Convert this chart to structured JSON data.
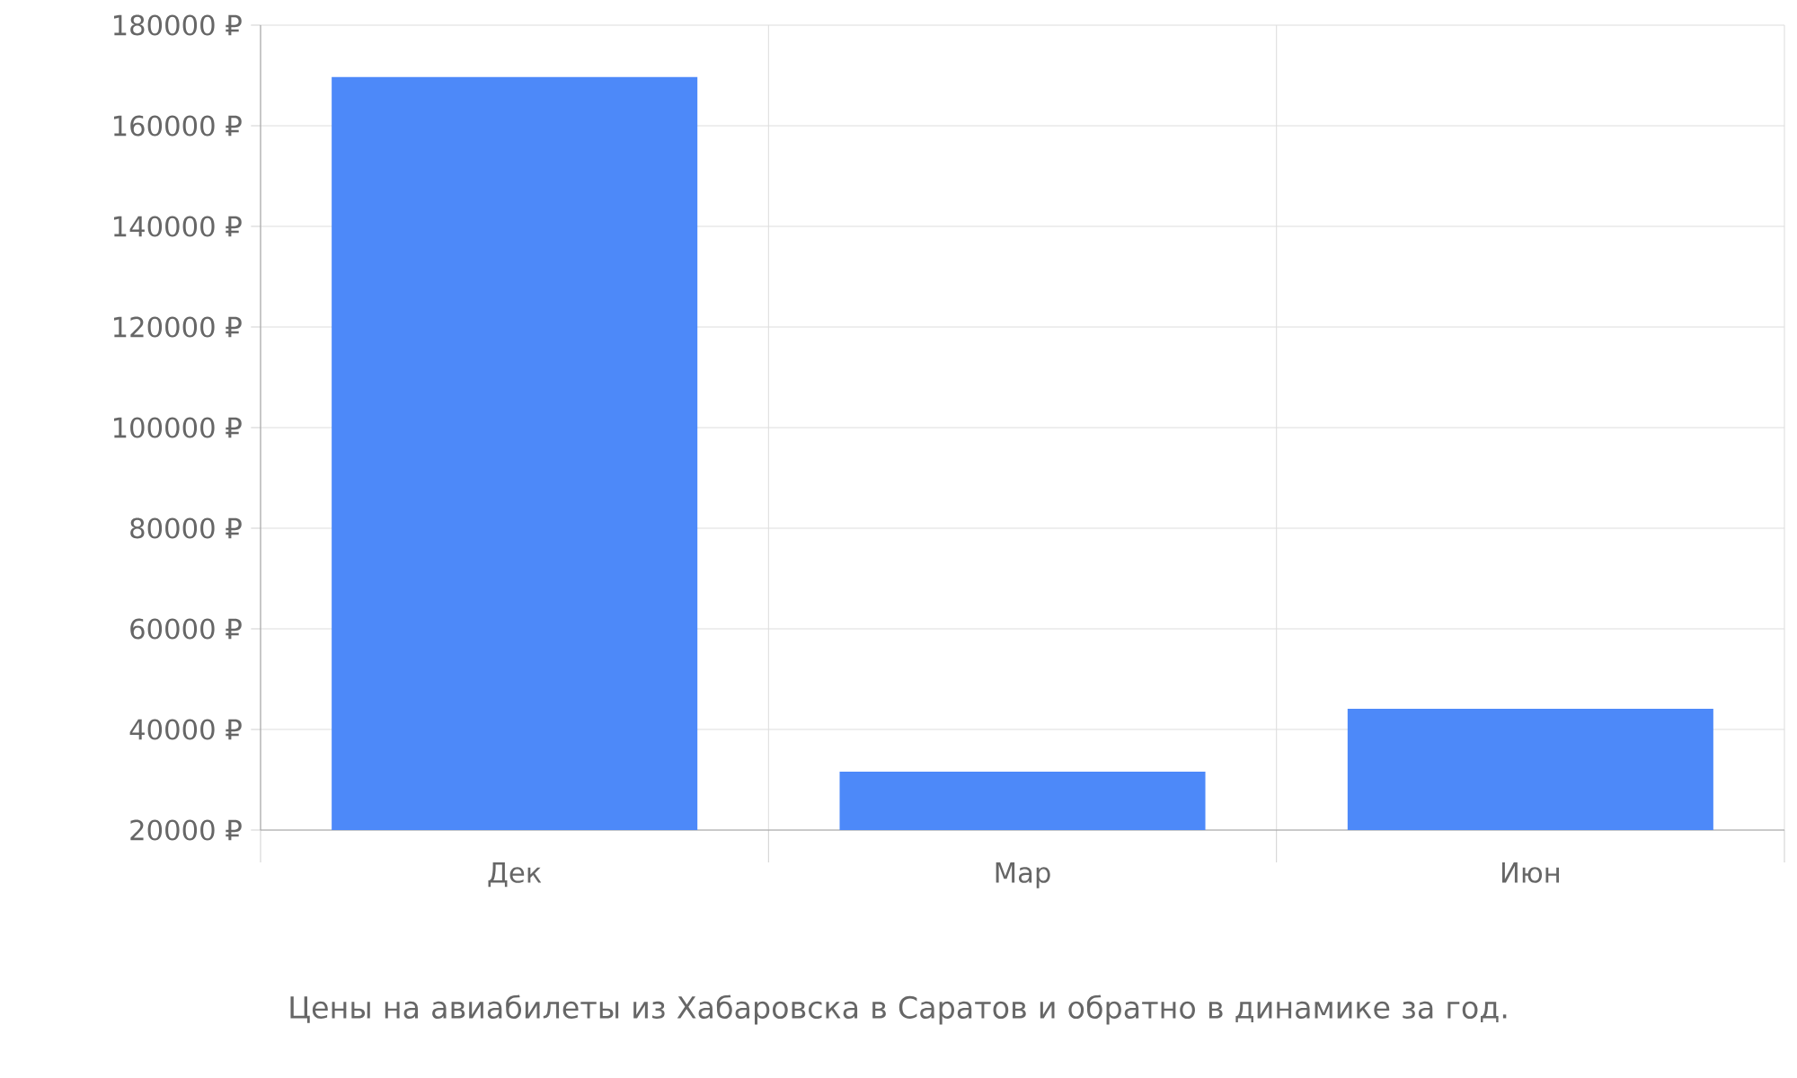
{
  "chart_data": {
    "type": "bar",
    "title": "Цены на авиабилеты из Хабаровска в Саратов и обратно в динамике за год.",
    "categories": [
      "Дек",
      "Мар",
      "Июн"
    ],
    "values": [
      169700,
      31600,
      44100
    ],
    "color": "#4d89f9",
    "ylim": [
      20000,
      180000
    ],
    "yticks": [
      {
        "value": 20000,
        "label": "20000 ₽"
      },
      {
        "value": 40000,
        "label": "40000 ₽"
      },
      {
        "value": 60000,
        "label": "60000 ₽"
      },
      {
        "value": 80000,
        "label": "80000 ₽"
      },
      {
        "value": 100000,
        "label": "100000 ₽"
      },
      {
        "value": 120000,
        "label": "120000 ₽"
      },
      {
        "value": 140000,
        "label": "140000 ₽"
      },
      {
        "value": 160000,
        "label": "160000 ₽"
      },
      {
        "value": 180000,
        "label": "180000 ₽"
      }
    ],
    "grid": true
  }
}
